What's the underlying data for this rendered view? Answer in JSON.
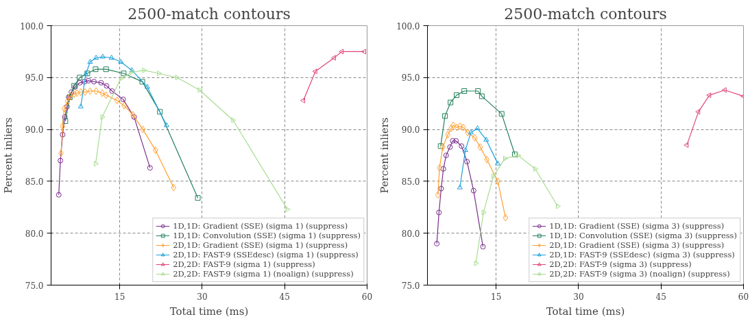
{
  "chart_data": [
    {
      "type": "line",
      "title": "2500-match contours",
      "xlabel": "Total time (ms)",
      "ylabel": "Percent inliers",
      "xlim": [
        2.5,
        60
      ],
      "ylim": [
        75,
        100
      ],
      "xticks": [
        15,
        30,
        45,
        60
      ],
      "yticks": [
        {
          "value": 75,
          "label": "75.0"
        },
        {
          "value": 80,
          "label": "80.0"
        },
        {
          "value": 85,
          "label": "85.0"
        },
        {
          "value": 90,
          "label": "90.0"
        },
        {
          "value": 95,
          "label": "95.0"
        },
        {
          "value": 100,
          "label": "100.0"
        }
      ],
      "grid": true,
      "legend": "bottom right",
      "line_style": "solid",
      "series": [
        {
          "name": "1D,1D: Gradient (SSE) (sigma 1) (suppress)",
          "color": "#7b2d8e",
          "marker": "circle",
          "x": [
            3.9,
            4.2,
            4.6,
            5.0,
            5.4,
            5.7,
            6.2,
            6.9,
            7.7,
            8.6,
            9.3,
            10.3,
            11.6,
            12.6,
            13.6,
            15.6,
            17.6,
            20.5
          ],
          "values": [
            83.7,
            87.0,
            89.5,
            91.2,
            92.2,
            93.1,
            93.6,
            94.1,
            94.5,
            94.6,
            94.7,
            94.6,
            94.5,
            94.2,
            93.7,
            92.9,
            91.2,
            86.3
          ]
        },
        {
          "name": "1D,1D: Convolution (SSE) (sigma 1) (suppress)",
          "color": "#23805a",
          "marker": "square",
          "x": [
            5.1,
            5.9,
            6.7,
            7.7,
            9.1,
            10.6,
            12.5,
            15.7,
            19.1,
            22.3,
            29.2
          ],
          "values": [
            90.8,
            93.1,
            94.2,
            95.0,
            95.4,
            95.8,
            95.8,
            95.4,
            94.6,
            91.7,
            83.4
          ]
        },
        {
          "name": "2D,1D: Gradient (SSE) (sigma 1) (suppress)",
          "color": "#ff9f2e",
          "marker": "diamond",
          "x": [
            4.3,
            4.6,
            4.9,
            5.5,
            6.0,
            6.7,
            7.2,
            7.9,
            8.7,
            9.6,
            10.7,
            11.8,
            12.5,
            14.5,
            15.8,
            17.4,
            19.2,
            21.5,
            24.8
          ],
          "values": [
            87.7,
            90.3,
            92.0,
            92.7,
            93.2,
            93.4,
            93.5,
            93.6,
            93.6,
            93.7,
            93.7,
            93.5,
            93.3,
            92.8,
            92.3,
            91.4,
            90.0,
            88.0,
            84.4
          ]
        },
        {
          "name": "2D,1D: FAST-9 (SSEdesc) (sigma 1) (suppress)",
          "color": "#1ca0dd",
          "marker": "triangle",
          "x": [
            7.9,
            8.8,
            9.6,
            10.7,
            11.9,
            13.5,
            15.2,
            17.2,
            20.0,
            23.5
          ],
          "values": [
            92.2,
            95.3,
            96.5,
            96.9,
            97.0,
            96.9,
            96.5,
            95.7,
            94.1,
            90.4
          ]
        },
        {
          "name": "2D,2D: FAST-9 (sigma 1) (suppress)",
          "color": "#e0457b",
          "marker": "triangle_left",
          "x": [
            48.4,
            50.6,
            54.0,
            55.4,
            59.5
          ],
          "values": [
            92.8,
            95.6,
            96.9,
            97.5,
            97.5
          ]
        },
        {
          "name": "2D,2D: FAST-9 (sigma 1) (noalign) (suppress)",
          "color": "#a8dc90",
          "marker": "triangle_right",
          "x": [
            10.6,
            11.8,
            15.2,
            17.1,
            19.4,
            22.1,
            25.4,
            29.5,
            35.6,
            45.5
          ],
          "values": [
            86.7,
            91.2,
            94.9,
            95.5,
            95.7,
            95.4,
            95.0,
            93.8,
            90.9,
            82.3
          ]
        }
      ]
    },
    {
      "type": "line",
      "title": "2500-match contours",
      "xlabel": "Total time (ms)",
      "ylabel": "Percent inliers",
      "xlim": [
        2.5,
        60
      ],
      "ylim": [
        75,
        100
      ],
      "xticks": [
        15,
        30,
        45,
        60
      ],
      "yticks": [
        {
          "value": 75,
          "label": "75.0"
        },
        {
          "value": 80,
          "label": "80.0"
        },
        {
          "value": 85,
          "label": "85.0"
        },
        {
          "value": 90,
          "label": "90.0"
        },
        {
          "value": 95,
          "label": "95.0"
        },
        {
          "value": 100,
          "label": "100.0"
        }
      ],
      "grid": true,
      "legend": "bottom right",
      "line_style": "solid",
      "series": [
        {
          "name": "1D,1D: Gradient (SSE) (sigma 3) (suppress)",
          "color": "#7b2d8e",
          "marker": "circle",
          "x": [
            4.2,
            4.6,
            5.0,
            5.4,
            5.9,
            6.6,
            7.1,
            7.7,
            8.7,
            9.7,
            10.9,
            12.6
          ],
          "values": [
            79.0,
            82.0,
            84.3,
            86.2,
            87.5,
            88.3,
            88.9,
            88.9,
            88.4,
            86.9,
            84.1,
            78.7
          ]
        },
        {
          "name": "1D,1D: Convolution (SSE) (sigma 3) (suppress)",
          "color": "#23805a",
          "marker": "square",
          "x": [
            4.9,
            5.7,
            6.7,
            7.8,
            9.2,
            11.7,
            12.4,
            16.0,
            18.4
          ],
          "values": [
            88.4,
            91.3,
            92.6,
            93.3,
            93.7,
            93.7,
            93.2,
            91.5,
            87.6
          ]
        },
        {
          "name": "2D,1D: Gradient (SSE) (sigma 3) (suppress)",
          "color": "#ff9f2e",
          "marker": "diamond",
          "x": [
            4.4,
            4.7,
            5.3,
            6.2,
            6.8,
            7.2,
            7.8,
            8.4,
            9.0,
            9.8,
            11.1,
            12.1,
            13.3,
            15.3,
            16.7
          ],
          "values": [
            83.7,
            86.3,
            88.3,
            89.5,
            90.1,
            90.4,
            90.2,
            90.3,
            90.2,
            89.7,
            89.2,
            88.3,
            87.1,
            85.0,
            81.5
          ]
        },
        {
          "name": "2D,1D: FAST-9 (SSEdesc) (sigma 3) (suppress)",
          "color": "#1ca0dd",
          "marker": "triangle",
          "x": [
            8.4,
            9.4,
            10.4,
            11.6,
            13.2,
            15.3
          ],
          "values": [
            84.4,
            88.0,
            89.7,
            90.1,
            89.0,
            86.7
          ]
        },
        {
          "name": "2D,2D: FAST-9 (sigma 3) (suppress)",
          "color": "#e0457b",
          "marker": "triangle_left",
          "x": [
            49.7,
            51.8,
            53.8,
            56.6,
            60.0
          ],
          "values": [
            88.5,
            91.7,
            93.3,
            93.8,
            93.2
          ]
        },
        {
          "name": "2D,2D: FAST-9 (sigma 3) (noalign) (suppress)",
          "color": "#a8dc90",
          "marker": "triangle_right",
          "x": [
            11.3,
            12.7,
            14.5,
            16.6,
            19.0,
            22.1,
            26.2
          ],
          "values": [
            77.1,
            82.0,
            85.5,
            87.2,
            87.5,
            86.2,
            82.6
          ]
        }
      ]
    }
  ]
}
